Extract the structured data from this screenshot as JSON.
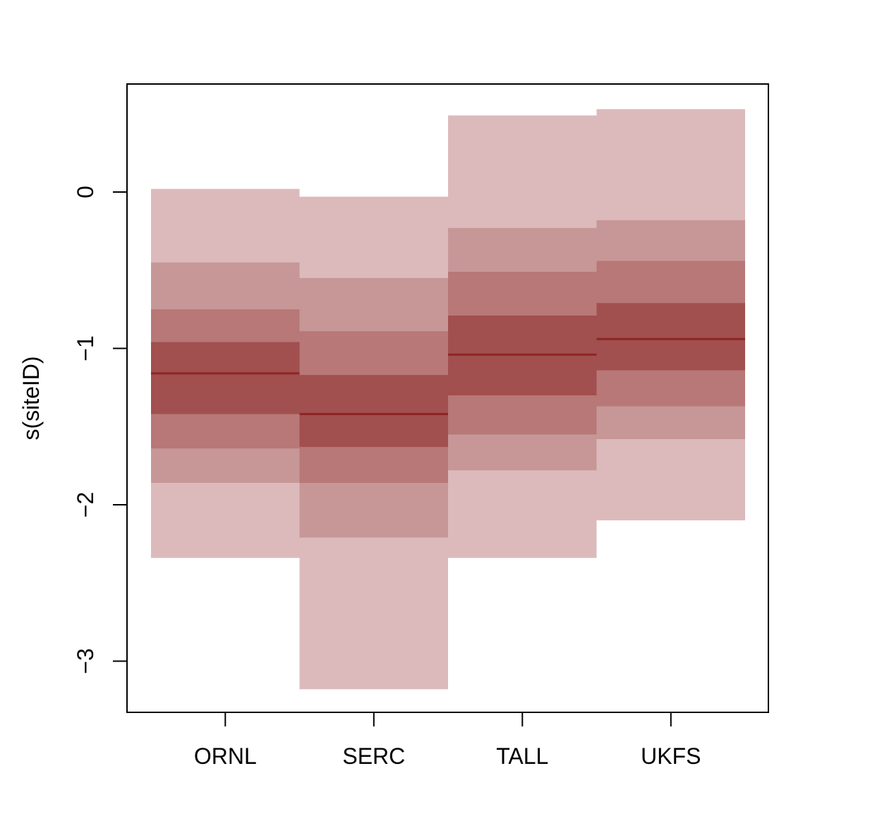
{
  "chart_data": {
    "type": "interval-bands",
    "title": "",
    "xlabel": "",
    "ylabel": "s(siteID)",
    "categories": [
      "ORNL",
      "SERC",
      "TALL",
      "UKFS"
    ],
    "ylim": [
      -3.32,
      0.68
    ],
    "yticks": [
      0,
      -1,
      -2,
      -3
    ],
    "ytick_labels": [
      "0",
      "−1",
      "−2",
      "−3"
    ],
    "grid": false,
    "legend": "none",
    "series": [
      {
        "category": "ORNL",
        "median": -1.16,
        "bands": [
          {
            "lower": -2.34,
            "upper": 0.02
          },
          {
            "lower": -1.86,
            "upper": -0.45
          },
          {
            "lower": -1.64,
            "upper": -0.75
          },
          {
            "lower": -1.42,
            "upper": -0.96
          }
        ]
      },
      {
        "category": "SERC",
        "median": -1.42,
        "bands": [
          {
            "lower": -3.18,
            "upper": -0.03
          },
          {
            "lower": -2.21,
            "upper": -0.55
          },
          {
            "lower": -1.86,
            "upper": -0.89
          },
          {
            "lower": -1.63,
            "upper": -1.17
          }
        ]
      },
      {
        "category": "TALL",
        "median": -1.04,
        "bands": [
          {
            "lower": -2.34,
            "upper": 0.49
          },
          {
            "lower": -1.78,
            "upper": -0.23
          },
          {
            "lower": -1.55,
            "upper": -0.51
          },
          {
            "lower": -1.3,
            "upper": -0.79
          }
        ]
      },
      {
        "category": "UKFS",
        "median": -0.94,
        "bands": [
          {
            "lower": -2.1,
            "upper": 0.53
          },
          {
            "lower": -1.58,
            "upper": -0.18
          },
          {
            "lower": -1.37,
            "upper": -0.44
          },
          {
            "lower": -1.14,
            "upper": -0.71
          }
        ]
      }
    ],
    "colors": {
      "bands": [
        "#dcbabb",
        "#c79798",
        "#b77877",
        "#a14f4f"
      ],
      "median": "#8f2424",
      "axis": "#000000"
    }
  }
}
